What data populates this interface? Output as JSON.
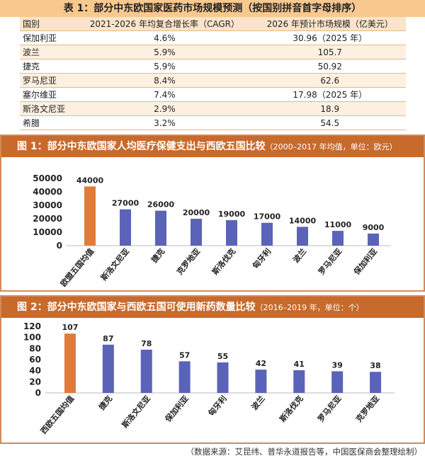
{
  "table": {
    "title": "表 1：部分中东欧国家医药市场规模预测（按国别拼音首字母排序）",
    "headers": [
      "国别",
      "2021-2026 年均复合增长率（CAGR）",
      "2026 年预计市场规模（亿美元）"
    ],
    "rows": [
      [
        "保加利亚",
        "4.6%",
        "30.96（2025 年）"
      ],
      [
        "波兰",
        "5.9%",
        "105.7"
      ],
      [
        "捷克",
        "5.9%",
        "50.92"
      ],
      [
        "罗马尼亚",
        "8.4%",
        "62.6"
      ],
      [
        "塞尔维亚",
        "7.4%",
        "17.98（2025 年）"
      ],
      [
        "斯洛文尼亚",
        "2.9%",
        "18.9"
      ],
      [
        "希腊",
        "3.2%",
        "54.5"
      ]
    ]
  },
  "chart1_title": {
    "main": "图 1：部分中东欧国家人均医疗保健支出与西欧五国比较",
    "sub": "（2000–2017 年均值，单位：欧元）"
  },
  "chart2_title": {
    "main": "图 2：部分中东欧国家与西欧五国可使用新药数量比较",
    "sub": "（2016–2019 年，单位：个）"
  },
  "source": "（数据来源：艾昆纬、普华永道报告等，中国医保商会整理绘制）",
  "colors": {
    "highlight": "#e07b39",
    "bar": "#5b63b8"
  },
  "chart_data": [
    {
      "type": "bar",
      "categories": [
        "欧盟五国均值",
        "斯洛文尼亚",
        "捷克",
        "克罗地亚",
        "斯洛伐克",
        "匈牙利",
        "波兰",
        "罗马尼亚",
        "保加利亚"
      ],
      "values": [
        44000,
        27000,
        26000,
        20000,
        19000,
        17000,
        14000,
        11000,
        9000
      ],
      "data_labels": [
        "44000",
        "27000",
        "26000",
        "20000",
        "19000",
        "17000",
        "14000",
        "11000",
        "9000"
      ],
      "yticks": [
        "0",
        "10000",
        "20000",
        "30000",
        "40000",
        "50000"
      ],
      "ylim": [
        0,
        50000
      ],
      "grid": false
    },
    {
      "type": "bar",
      "categories": [
        "西欧五国均值",
        "捷克",
        "斯洛文尼亚",
        "保加利亚",
        "匈牙利",
        "波兰",
        "斯洛伐克",
        "罗马尼亚",
        "克罗地亚"
      ],
      "values": [
        107,
        87,
        78,
        57,
        55,
        42,
        41,
        39,
        38
      ],
      "data_labels": [
        "107",
        "87",
        "78",
        "57",
        "55",
        "42",
        "41",
        "39",
        "38"
      ],
      "yticks": [
        "0",
        "20",
        "40",
        "60",
        "80",
        "100",
        "120"
      ],
      "ylim": [
        0,
        120
      ],
      "grid": false
    }
  ]
}
